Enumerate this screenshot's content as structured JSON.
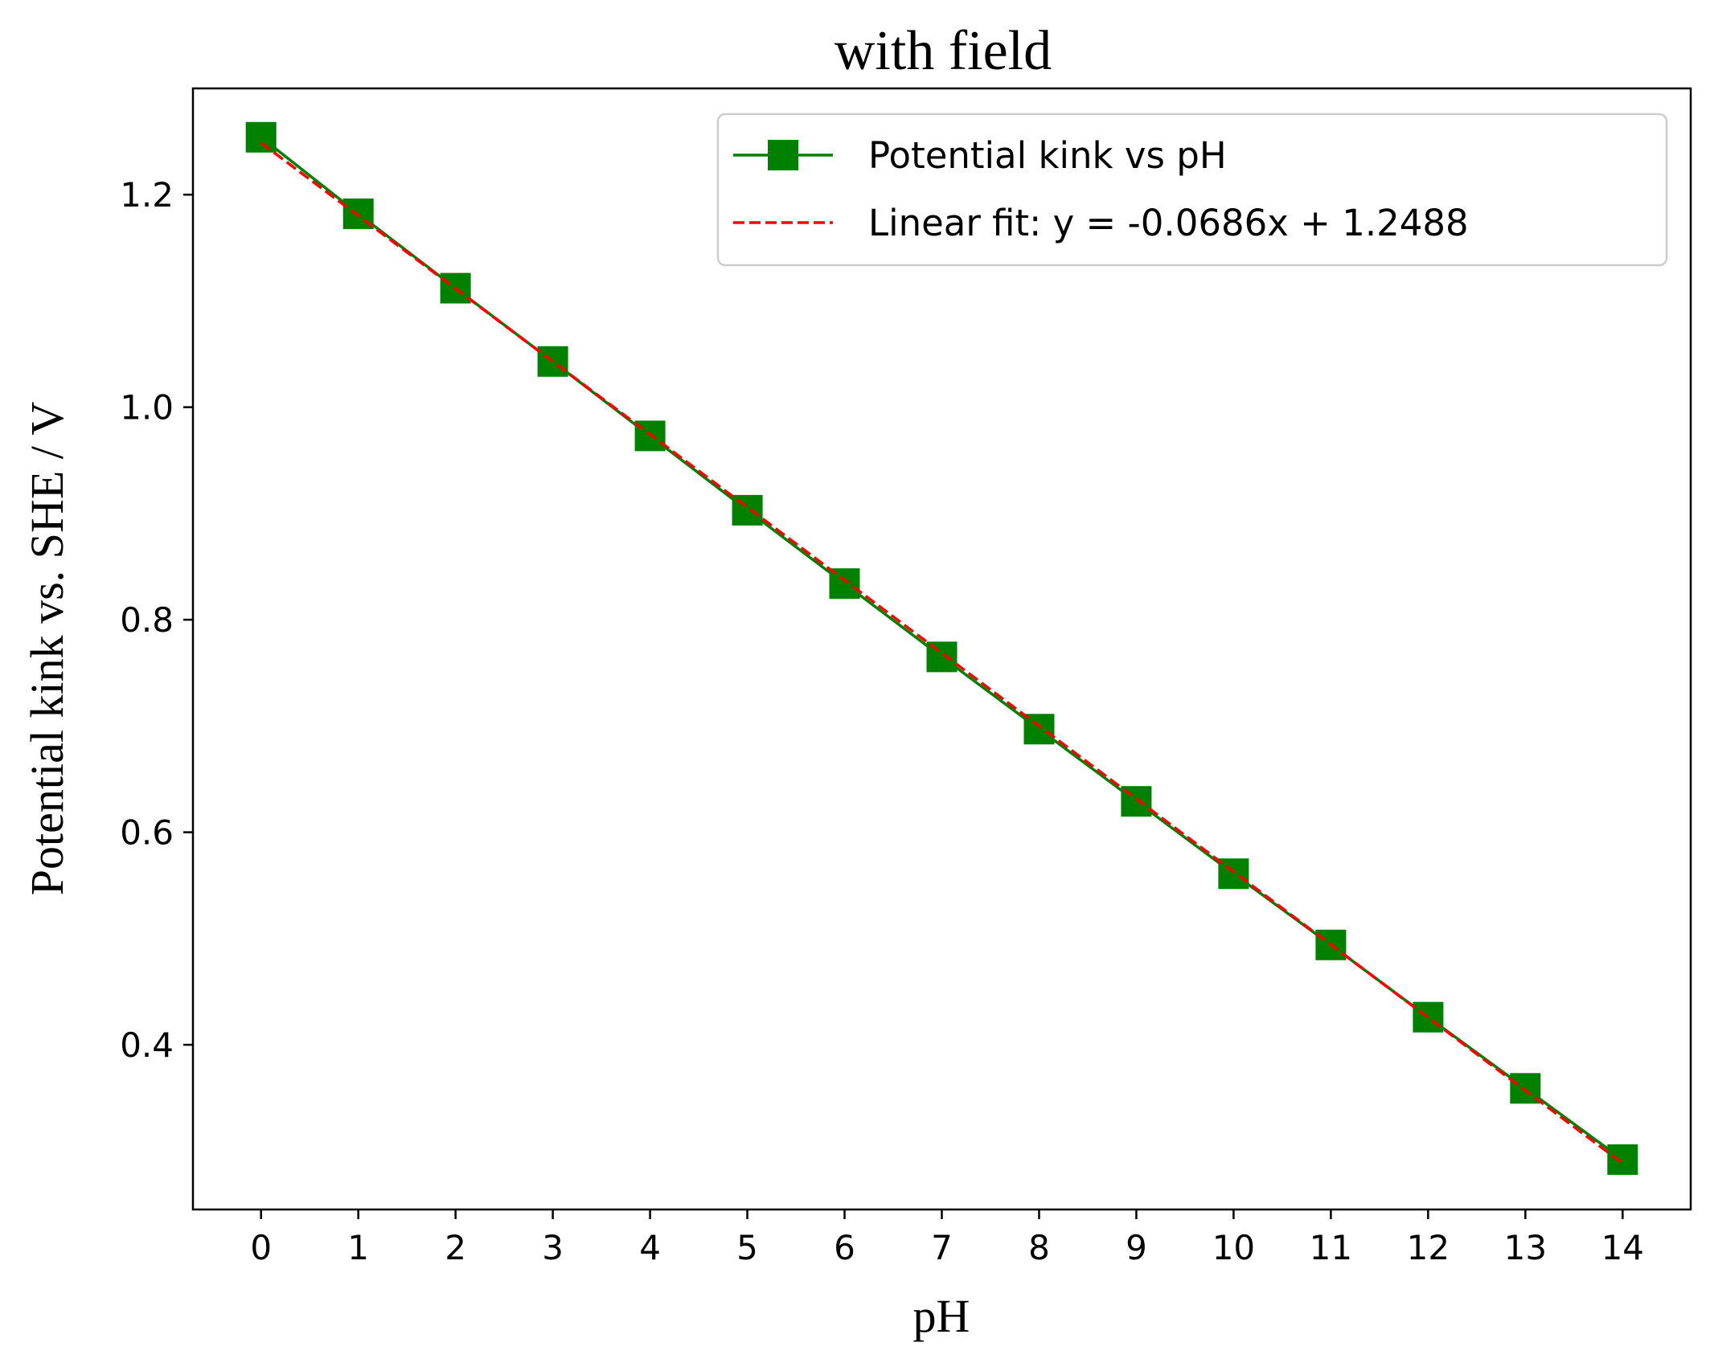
{
  "chart_data": {
    "type": "line",
    "title": "with field",
    "xlabel": "pH",
    "ylabel": "Potential kink vs. SHE / V",
    "xlim": [
      -0.7,
      14.7
    ],
    "ylim": [
      0.245,
      1.3
    ],
    "xticks": [
      0,
      1,
      2,
      3,
      4,
      5,
      6,
      7,
      8,
      9,
      10,
      11,
      12,
      13,
      14
    ],
    "yticks": [
      0.4,
      0.6,
      0.8,
      1.0,
      1.2
    ],
    "ytick_labels": [
      "0.4",
      "0.6",
      "0.8",
      "1.0",
      "1.2"
    ],
    "grid": false,
    "legend_position": "top-right",
    "series": [
      {
        "name": "Potential kink vs pH",
        "style": "solid-line-square-markers",
        "color": "#008000",
        "x": [
          0,
          1,
          2,
          3,
          4,
          5,
          6,
          7,
          8,
          9,
          10,
          11,
          12,
          13,
          14
        ],
        "y": [
          1.254,
          1.182,
          1.112,
          1.043,
          0.973,
          0.903,
          0.834,
          0.765,
          0.697,
          0.629,
          0.561,
          0.494,
          0.426,
          0.359,
          0.292
        ]
      },
      {
        "name": "Linear fit: y = -0.0686x + 1.2488",
        "style": "dashed-line",
        "color": "#ff0000",
        "slope": -0.0686,
        "intercept": 1.2488,
        "x_range": [
          0,
          14
        ]
      }
    ]
  }
}
